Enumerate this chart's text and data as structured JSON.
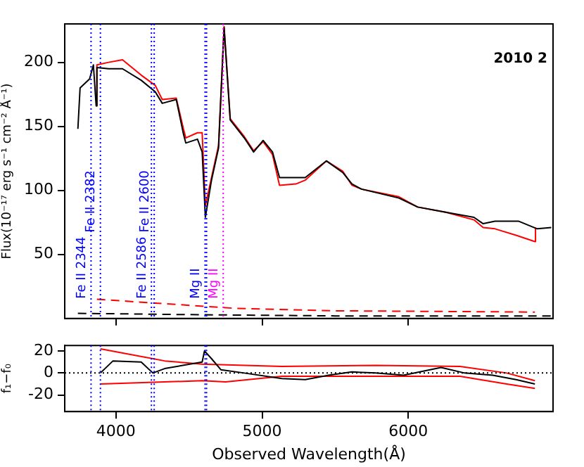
{
  "chart_data": [
    {
      "type": "line",
      "ylabel": "Flux(10⁻¹⁷ erg s⁻¹ cm⁻² Å⁻¹)",
      "annotations": [
        "2010 2"
      ],
      "xlim": [
        3650,
        6990
      ],
      "ylim": [
        0,
        230
      ],
      "xticks": [
        4000,
        5000,
        6000
      ],
      "yticks": [
        50,
        100,
        150,
        200
      ],
      "tick_labels": "y",
      "grid": false,
      "legend": false,
      "marker": "none",
      "series": [
        {
          "color": "#000000",
          "x": [
            3740,
            3755,
            3820,
            3846,
            3865,
            3870,
            3950,
            4045,
            4173,
            4269,
            4317,
            4413,
            4462,
            4478,
            4558,
            4590,
            4612,
            4654,
            4702,
            4740,
            4782,
            4878,
            4942,
            5007,
            5071,
            5119,
            5231,
            5295,
            5440,
            5551,
            5615,
            5680,
            5936,
            6064,
            6256,
            6449,
            6512,
            6593,
            6753,
            6882,
            6978
          ],
          "values": [
            148,
            180,
            187,
            198,
            166,
            196,
            195,
            195,
            186,
            177,
            168,
            171,
            144,
            137,
            140,
            130,
            79,
            108,
            133,
            227,
            155,
            141,
            130,
            139,
            130,
            110,
            110,
            110,
            123,
            114,
            105,
            101,
            94,
            87,
            83,
            79,
            74,
            76,
            76,
            70,
            71
          ]
        },
        {
          "color": "#ff0000",
          "x": [
            3865,
            3870,
            3950,
            4045,
            4173,
            4269,
            4317,
            4413,
            4462,
            4478,
            4558,
            4590,
            4612,
            4654,
            4702,
            4740,
            4782,
            4878,
            4942,
            5007,
            5071,
            5119,
            5231,
            5295,
            5440,
            5551,
            5615,
            5680,
            5936,
            6064,
            6256,
            6449,
            6512,
            6593,
            6737,
            6866,
            6870
          ],
          "values": [
            166,
            198,
            200,
            202,
            190,
            182,
            171,
            172,
            148,
            141,
            145,
            145,
            88,
            110,
            135,
            228,
            156,
            142,
            131,
            138,
            128,
            104,
            105,
            108,
            123,
            115,
            104,
            101,
            95,
            87,
            83,
            77,
            71,
            70,
            65,
            60,
            71
          ]
        },
        {
          "color": "#000000",
          "line_style": "dashed",
          "x": [
            3740,
            4500,
            5500,
            6978
          ],
          "values": [
            4,
            3,
            2,
            2
          ]
        },
        {
          "color": "#ff0000",
          "line_style": "dashed",
          "x": [
            3870,
            4270,
            4800,
            5500,
            6866
          ],
          "values": [
            15,
            12,
            8,
            6,
            5
          ]
        }
      ],
      "ref_lines": [
        {
          "axis": "x",
          "value": 3830,
          "label": "Fe II 2344",
          "color": "#0000ff",
          "line_style": "dotted"
        },
        {
          "axis": "x",
          "value": 3894,
          "label": "Fe II 2382",
          "color": "#0000ff",
          "line_style": "dotted"
        },
        {
          "axis": "x",
          "value": 4243,
          "label": "Fe II 2586",
          "color": "#0000ff",
          "line_style": "dotted"
        },
        {
          "axis": "x",
          "value": 4262,
          "label": "Fe II 2600",
          "color": "#0000ff",
          "line_style": "dotted"
        },
        {
          "axis": "x",
          "value": 4610,
          "label": "Mg II",
          "color": "#0000ff",
          "line_style": "dotted"
        },
        {
          "axis": "x",
          "value": 4620,
          "color": "#0000ff",
          "line_style": "dotted"
        },
        {
          "axis": "x",
          "value": 4734,
          "label": "Mg II",
          "color": "#ff00ff",
          "line_style": "dotted"
        }
      ]
    },
    {
      "type": "line",
      "xlabel": "Observed Wavelength(Å)",
      "ylabel": "f₁−f₀",
      "xlim": [
        3650,
        6990
      ],
      "ylim": [
        -35,
        25
      ],
      "xticks": [
        4000,
        5000,
        6000
      ],
      "yticks": [
        -20,
        0,
        20
      ],
      "grid": false,
      "legend": false,
      "marker": "none",
      "series": [
        {
          "color": "#000000",
          "x": [
            3894,
            3980,
            4173,
            4253,
            4333,
            4590,
            4606,
            4654,
            4718,
            4878,
            5135,
            5295,
            5455,
            5615,
            5776,
            5968,
            6224,
            6385,
            6577,
            6737,
            6866
          ],
          "values": [
            0,
            11,
            10,
            0,
            4,
            10,
            20,
            13,
            3,
            0,
            -5,
            -6,
            -2,
            1,
            0,
            -2,
            5,
            0,
            -2,
            -6,
            -10
          ]
        },
        {
          "color": "#ff0000",
          "x": [
            3894,
            4333,
            4590,
            5135,
            5776,
            6353,
            6673,
            6866
          ],
          "values": [
            22,
            11,
            8,
            6,
            7,
            6,
            0,
            -7
          ]
        },
        {
          "color": "#ff0000",
          "x": [
            3894,
            4590,
            4750,
            5135,
            5776,
            6353,
            6673,
            6866
          ],
          "values": [
            -10,
            -7,
            -8,
            -3,
            -3,
            -3,
            -10,
            -14
          ]
        }
      ],
      "ref_lines": [
        {
          "axis": "y",
          "value": 0,
          "color": "#000000",
          "line_style": "dotted"
        },
        {
          "axis": "x",
          "value": 3830,
          "color": "#0000ff",
          "line_style": "dotted"
        },
        {
          "axis": "x",
          "value": 3894,
          "color": "#0000ff",
          "line_style": "dotted"
        },
        {
          "axis": "x",
          "value": 4243,
          "color": "#0000ff",
          "line_style": "dotted"
        },
        {
          "axis": "x",
          "value": 4262,
          "color": "#0000ff",
          "line_style": "dotted"
        },
        {
          "axis": "x",
          "value": 4610,
          "color": "#0000ff",
          "line_style": "dotted"
        },
        {
          "axis": "x",
          "value": 4620,
          "color": "#0000ff",
          "line_style": "dotted"
        }
      ]
    }
  ]
}
